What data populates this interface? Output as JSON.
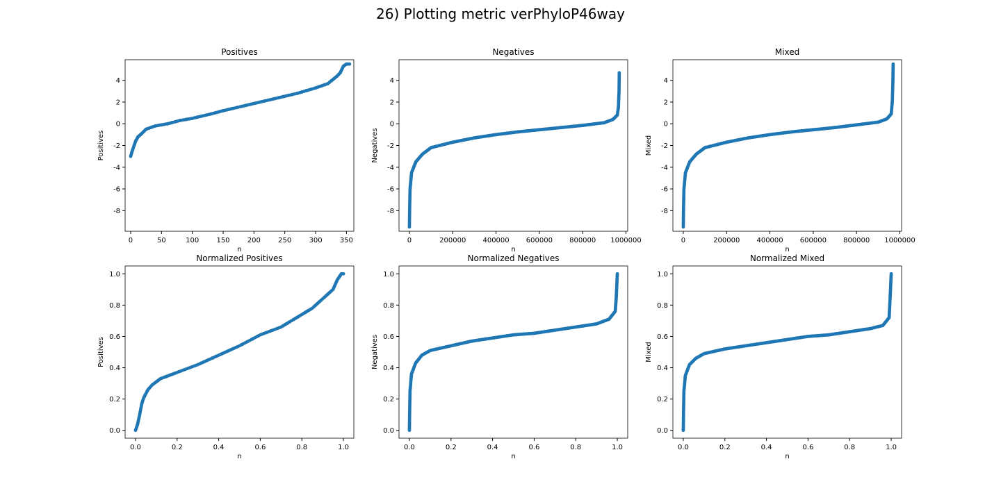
{
  "figure": {
    "suptitle": "26) Plotting metric verPhyloP46way"
  },
  "chart_data": [
    {
      "type": "scatter",
      "title": "Positives",
      "xlabel": "n",
      "ylabel": "Positives",
      "xlim": [
        -9,
        362
      ],
      "ylim": [
        -9.9,
        5.9
      ],
      "xticks": [
        0,
        50,
        100,
        150,
        200,
        250,
        300,
        350
      ],
      "yticks": [
        -8,
        -6,
        -4,
        -2,
        0,
        2,
        4
      ],
      "color": "#1f77b4",
      "curve": [
        [
          0,
          -3.0
        ],
        [
          2,
          -2.6
        ],
        [
          5,
          -2.1
        ],
        [
          8,
          -1.6
        ],
        [
          12,
          -1.2
        ],
        [
          18,
          -0.9
        ],
        [
          25,
          -0.5
        ],
        [
          40,
          -0.2
        ],
        [
          60,
          0.0
        ],
        [
          80,
          0.3
        ],
        [
          100,
          0.5
        ],
        [
          130,
          0.9
        ],
        [
          150,
          1.2
        ],
        [
          180,
          1.6
        ],
        [
          210,
          2.0
        ],
        [
          240,
          2.4
        ],
        [
          270,
          2.8
        ],
        [
          300,
          3.3
        ],
        [
          320,
          3.7
        ],
        [
          335,
          4.4
        ],
        [
          340,
          4.7
        ],
        [
          345,
          5.3
        ],
        [
          350,
          5.5
        ],
        [
          355,
          5.5
        ]
      ],
      "sample_count": 120
    },
    {
      "type": "scatter",
      "title": "Negatives",
      "xlabel": "n",
      "ylabel": "Negatives",
      "xlim": [
        -48000,
        1008000
      ],
      "ylim": [
        -9.9,
        5.9
      ],
      "xticks": [
        0,
        200000,
        400000,
        600000,
        800000,
        1000000
      ],
      "yticks": [
        -8,
        -6,
        -4,
        -2,
        0,
        2,
        4
      ],
      "color": "#1f77b4",
      "curve": [
        [
          0,
          -9.5
        ],
        [
          1000,
          -8.0
        ],
        [
          3000,
          -6.0
        ],
        [
          10000,
          -4.5
        ],
        [
          30000,
          -3.5
        ],
        [
          60000,
          -2.8
        ],
        [
          100000,
          -2.2
        ],
        [
          200000,
          -1.7
        ],
        [
          300000,
          -1.3
        ],
        [
          400000,
          -1.0
        ],
        [
          500000,
          -0.75
        ],
        [
          600000,
          -0.55
        ],
        [
          700000,
          -0.35
        ],
        [
          800000,
          -0.15
        ],
        [
          900000,
          0.1
        ],
        [
          940000,
          0.4
        ],
        [
          960000,
          0.8
        ],
        [
          965000,
          1.5
        ],
        [
          968000,
          3.0
        ],
        [
          969000,
          4.7
        ]
      ],
      "sample_count": 220
    },
    {
      "type": "scatter",
      "title": "Mixed",
      "xlabel": "n",
      "ylabel": "Mixed",
      "xlim": [
        -48000,
        1008000
      ],
      "ylim": [
        -9.9,
        5.9
      ],
      "xticks": [
        0,
        200000,
        400000,
        600000,
        800000,
        1000000
      ],
      "yticks": [
        -8,
        -6,
        -4,
        -2,
        0,
        2,
        4
      ],
      "color": "#1f77b4",
      "curve": [
        [
          0,
          -9.5
        ],
        [
          1000,
          -8.0
        ],
        [
          3000,
          -6.0
        ],
        [
          10000,
          -4.5
        ],
        [
          30000,
          -3.5
        ],
        [
          60000,
          -2.8
        ],
        [
          100000,
          -2.2
        ],
        [
          200000,
          -1.7
        ],
        [
          300000,
          -1.3
        ],
        [
          400000,
          -1.0
        ],
        [
          500000,
          -0.75
        ],
        [
          600000,
          -0.55
        ],
        [
          700000,
          -0.35
        ],
        [
          800000,
          -0.1
        ],
        [
          900000,
          0.15
        ],
        [
          940000,
          0.45
        ],
        [
          960000,
          0.9
        ],
        [
          965000,
          2.0
        ],
        [
          968000,
          4.0
        ],
        [
          969000,
          5.5
        ]
      ],
      "sample_count": 220
    },
    {
      "type": "scatter",
      "title": "Normalized Positives",
      "xlabel": "n",
      "ylabel": "Positives",
      "xlim": [
        -0.05,
        1.05
      ],
      "ylim": [
        -0.05,
        1.05
      ],
      "xticks": [
        0.0,
        0.2,
        0.4,
        0.6,
        0.8,
        1.0
      ],
      "yticks": [
        0.0,
        0.2,
        0.4,
        0.6,
        0.8,
        1.0
      ],
      "color": "#1f77b4",
      "curve": [
        [
          0.0,
          0.0
        ],
        [
          0.01,
          0.04
        ],
        [
          0.02,
          0.1
        ],
        [
          0.03,
          0.17
        ],
        [
          0.04,
          0.21
        ],
        [
          0.06,
          0.26
        ],
        [
          0.08,
          0.29
        ],
        [
          0.12,
          0.33
        ],
        [
          0.16,
          0.35
        ],
        [
          0.2,
          0.37
        ],
        [
          0.3,
          0.42
        ],
        [
          0.4,
          0.48
        ],
        [
          0.5,
          0.54
        ],
        [
          0.6,
          0.61
        ],
        [
          0.7,
          0.66
        ],
        [
          0.75,
          0.7
        ],
        [
          0.8,
          0.74
        ],
        [
          0.85,
          0.78
        ],
        [
          0.9,
          0.84
        ],
        [
          0.95,
          0.9
        ],
        [
          0.97,
          0.96
        ],
        [
          0.99,
          1.0
        ],
        [
          1.0,
          1.0
        ]
      ],
      "sample_count": 120
    },
    {
      "type": "scatter",
      "title": "Normalized Negatives",
      "xlabel": "n",
      "ylabel": "Negatives",
      "xlim": [
        -0.05,
        1.05
      ],
      "ylim": [
        -0.05,
        1.05
      ],
      "xticks": [
        0.0,
        0.2,
        0.4,
        0.6,
        0.8,
        1.0
      ],
      "yticks": [
        0.0,
        0.2,
        0.4,
        0.6,
        0.8,
        1.0
      ],
      "color": "#1f77b4",
      "curve": [
        [
          0.0,
          0.0
        ],
        [
          0.001,
          0.1
        ],
        [
          0.003,
          0.25
        ],
        [
          0.01,
          0.36
        ],
        [
          0.03,
          0.43
        ],
        [
          0.06,
          0.48
        ],
        [
          0.1,
          0.51
        ],
        [
          0.2,
          0.54
        ],
        [
          0.3,
          0.57
        ],
        [
          0.4,
          0.59
        ],
        [
          0.5,
          0.61
        ],
        [
          0.6,
          0.62
        ],
        [
          0.7,
          0.64
        ],
        [
          0.8,
          0.66
        ],
        [
          0.9,
          0.68
        ],
        [
          0.96,
          0.71
        ],
        [
          0.99,
          0.76
        ],
        [
          0.995,
          0.85
        ],
        [
          1.0,
          1.0
        ]
      ],
      "sample_count": 220
    },
    {
      "type": "scatter",
      "title": "Normalized Mixed",
      "xlabel": "n",
      "ylabel": "Mixed",
      "xlim": [
        -0.05,
        1.05
      ],
      "ylim": [
        -0.05,
        1.05
      ],
      "xticks": [
        0.0,
        0.2,
        0.4,
        0.6,
        0.8,
        1.0
      ],
      "yticks": [
        0.0,
        0.2,
        0.4,
        0.6,
        0.8,
        1.0
      ],
      "color": "#1f77b4",
      "curve": [
        [
          0.0,
          0.0
        ],
        [
          0.001,
          0.1
        ],
        [
          0.003,
          0.25
        ],
        [
          0.01,
          0.35
        ],
        [
          0.03,
          0.42
        ],
        [
          0.06,
          0.46
        ],
        [
          0.1,
          0.49
        ],
        [
          0.2,
          0.52
        ],
        [
          0.3,
          0.54
        ],
        [
          0.4,
          0.56
        ],
        [
          0.5,
          0.58
        ],
        [
          0.6,
          0.6
        ],
        [
          0.7,
          0.61
        ],
        [
          0.8,
          0.63
        ],
        [
          0.9,
          0.65
        ],
        [
          0.96,
          0.67
        ],
        [
          0.99,
          0.72
        ],
        [
          0.995,
          0.85
        ],
        [
          1.0,
          1.0
        ]
      ],
      "sample_count": 220
    }
  ]
}
